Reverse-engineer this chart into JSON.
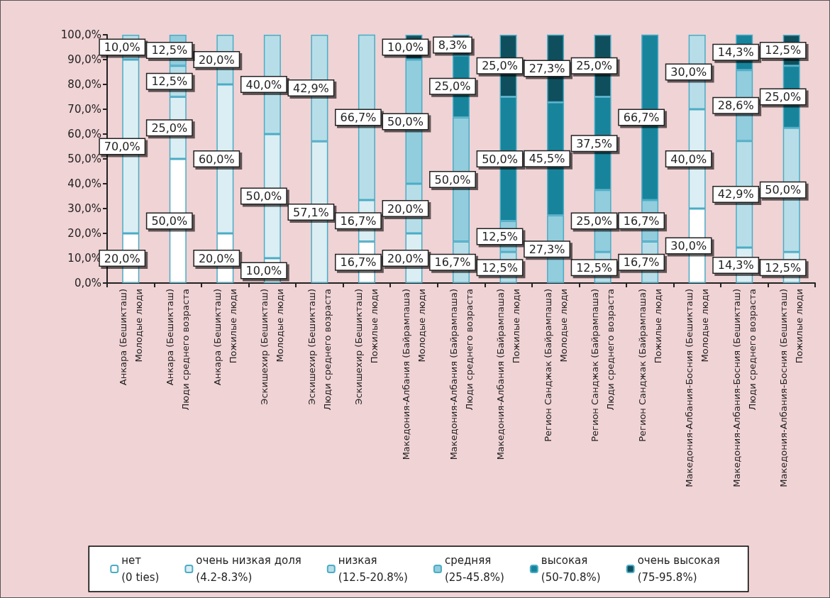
{
  "chart_data": {
    "type": "bar",
    "stacked": true,
    "legend": "bottom",
    "grid": false,
    "categories": [
      "Анкара (Бешикташ)\nМолодые люди",
      "Анкара (Бешикташ)\nЛюди среднего возраста",
      "Анкара (Бешикташ)\nПожилые люди",
      "Эскишехир (Бешикташ)\nМолодые люди",
      "Эскишехир (Бешикташ)\nЛюди среднего возраста",
      "Эскишехир (Бешикташ)\nПожилые люди",
      "Македония-Албания (Байрампаша)\nМолодые люди",
      "Македония-Албания (Байрампаша)\nЛюди среднего возраста",
      "Македония-Албания (Байрампаша)\nПожилые люди",
      "Регион Санджак (Байрампаша)\nМолодые люди",
      "Регион Санджак (Байрампаша)\nЛюди среднего возраста",
      "Регион Санджак (Байрампаша)\nПожилые люди",
      "Македония-Албания-Босния (Бешикташ)\nМолодые люди",
      "Македония-Албания-Босния (Бешикташ)\nЛюди среднего возраста",
      "Македония-Албания-Босния (Бешикташ)\nПожилые люди"
    ],
    "ylim": [
      0,
      100
    ],
    "yticks": [
      {
        "value": 0,
        "label": "0,0%"
      },
      {
        "value": 10,
        "label": "10,0%"
      },
      {
        "value": 20,
        "label": "20,0%"
      },
      {
        "value": 30,
        "label": "30,0%"
      },
      {
        "value": 40,
        "label": "40,0%"
      },
      {
        "value": 50,
        "label": "50,0%"
      },
      {
        "value": 60,
        "label": "60,0%"
      },
      {
        "value": 70,
        "label": "70,0%"
      },
      {
        "value": 80,
        "label": "80,0%"
      },
      {
        "value": 90,
        "label": "90,0%"
      },
      {
        "value": 100,
        "label": "100,0%"
      }
    ],
    "series": [
      {
        "name": "нет\n(0 ties)",
        "color": "#ffffff",
        "values": [
          20,
          50,
          20,
          10,
          null,
          16.7,
          null,
          null,
          null,
          null,
          null,
          null,
          30,
          null,
          null
        ],
        "value_labels": [
          "20,0%",
          "50,0%",
          "20,0%",
          "10,0%",
          null,
          "16,7%",
          null,
          null,
          null,
          null,
          null,
          null,
          "30,0%",
          null,
          null
        ]
      },
      {
        "name": "очень низкая доля\n(4.2-8.3%)",
        "color": "#daeef3",
        "values": [
          70,
          25,
          60,
          50,
          57.1,
          16.7,
          20,
          null,
          null,
          null,
          null,
          null,
          40,
          14.3,
          12.5
        ],
        "value_labels": [
          "70,0%",
          "25,0%",
          "60,0%",
          "50,0%",
          "57,1%",
          "16,7%",
          "20,0%",
          null,
          null,
          null,
          null,
          null,
          "40,0%",
          "14,3%",
          "12,5%"
        ]
      },
      {
        "name": "низкая\n(12.5-20.8%)",
        "color": "#b7dee8",
        "values": [
          10,
          12.5,
          20,
          40,
          42.9,
          66.7,
          20,
          16.7,
          12.5,
          null,
          12.5,
          16.7,
          30,
          42.9,
          50
        ],
        "value_labels": [
          "10,0%",
          "12,5%",
          "20,0%",
          "40,0%",
          "42,9%",
          "66,7%",
          "20,0%",
          "16,7%",
          "12,5%",
          null,
          "12,5%",
          "16,7%",
          "30,0%",
          "42,9%",
          "50,0%"
        ]
      },
      {
        "name": "средняя\n(25-45.8%)",
        "color": "#92cddd",
        "values": [
          null,
          12.5,
          null,
          null,
          null,
          null,
          50,
          50,
          12.5,
          27.3,
          25,
          16.7,
          null,
          28.6,
          null
        ],
        "value_labels": [
          null,
          "12,5%",
          null,
          null,
          null,
          null,
          "50,0%",
          "50,0%",
          "12,5%",
          "27,3%",
          "25,0%",
          "16,7%",
          null,
          "28,6%",
          null
        ]
      },
      {
        "name": "высокая\n(50-70.8%)",
        "color": "#17849b",
        "values": [
          null,
          null,
          null,
          null,
          null,
          null,
          null,
          25,
          50,
          45.5,
          37.5,
          66.7,
          null,
          14.3,
          25
        ],
        "value_labels": [
          null,
          null,
          null,
          null,
          null,
          null,
          null,
          "25,0%",
          "50,0%",
          "45,5%",
          "37,5%",
          "66,7%",
          null,
          "14,3%",
          "25,0%"
        ]
      },
      {
        "name": "очень высокая\n(75-95.8%)",
        "color": "#0f4f5d",
        "values": [
          null,
          null,
          null,
          null,
          null,
          null,
          10,
          8.3,
          25,
          27.3,
          25,
          null,
          null,
          null,
          12.5
        ],
        "value_labels": [
          null,
          null,
          null,
          null,
          null,
          null,
          "10,0%",
          "8,3%",
          "25,0%",
          "27,3%",
          "25,0%",
          null,
          null,
          null,
          "12,5%"
        ]
      }
    ]
  }
}
